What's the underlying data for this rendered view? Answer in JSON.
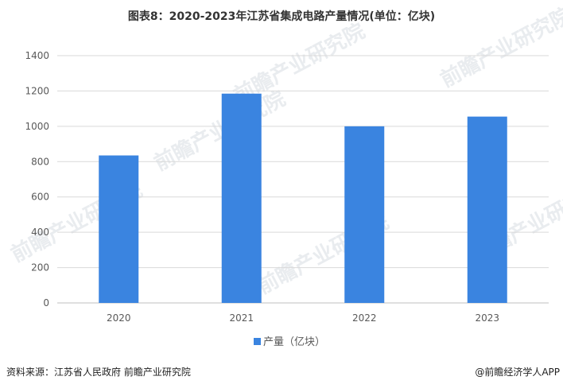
{
  "chart_data": {
    "type": "bar",
    "title": "图表8：2020-2023年江苏省集成电路产量情况(单位：亿块)",
    "categories": [
      "2020",
      "2021",
      "2022",
      "2023"
    ],
    "series": [
      {
        "name": "产量（亿块）",
        "values": [
          835,
          1185,
          1000,
          1055
        ],
        "color": "#3a84e0"
      }
    ],
    "ylim": [
      0,
      1400
    ],
    "yticks": [
      0,
      200,
      400,
      600,
      800,
      1000,
      1200,
      1400
    ],
    "grid": true,
    "legend": "bottom"
  },
  "footer": {
    "source": "资料来源：江苏省人民政府 前瞻产业研究院",
    "brand": "@前瞻经济学人APP"
  },
  "watermark": {
    "text": "前瞻产业研究院"
  }
}
